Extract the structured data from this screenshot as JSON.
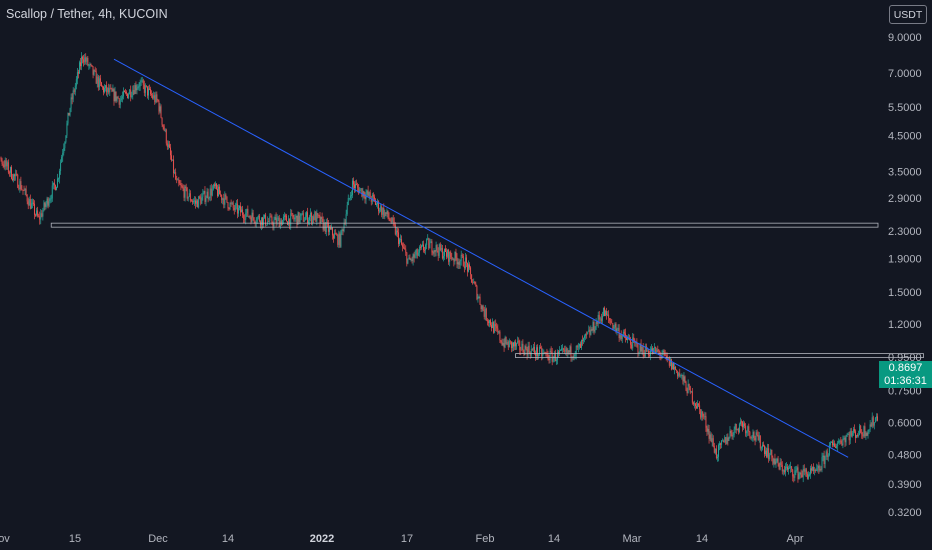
{
  "header": {
    "title": "Scallop / Tether, 4h, KUCOIN",
    "currency": "USDT"
  },
  "price_tag": {
    "price": "0.8697",
    "countdown": "01:36:31"
  },
  "colors": {
    "background": "#131722",
    "up": "#26a69a",
    "down": "#ef5350",
    "trendline": "#2962ff",
    "price_tag": "#089981"
  },
  "chart_data": {
    "type": "candlestick",
    "title": "Scallop / Tether, 4h, KUCOIN",
    "y_scale": "log",
    "y_ticks": [
      "0.3200",
      "0.3900",
      "0.4800",
      "0.6000",
      "0.7500",
      "0.9500",
      "1.2000",
      "1.5000",
      "1.9000",
      "2.3000",
      "2.9000",
      "3.5000",
      "4.5000",
      "5.5000",
      "7.0000",
      "9.0000"
    ],
    "x_ticks": [
      "ov",
      "15",
      "Dec",
      "14",
      "2022",
      "17",
      "Feb",
      "14",
      "Mar",
      "14",
      "Apr"
    ],
    "close_path": [
      [
        "2021-11-01",
        6.6
      ],
      [
        "2021-11-04",
        3.8
      ],
      [
        "2021-11-07",
        3.2
      ],
      [
        "2021-11-10",
        2.5
      ],
      [
        "2021-11-13",
        3.3
      ],
      [
        "2021-11-15",
        5.5
      ],
      [
        "2021-11-17",
        7.9
      ],
      [
        "2021-11-20",
        6.3
      ],
      [
        "2021-11-23",
        5.8
      ],
      [
        "2021-11-26",
        6.5
      ],
      [
        "2021-11-29",
        5.7
      ],
      [
        "2021-12-02",
        3.2
      ],
      [
        "2021-12-05",
        2.8
      ],
      [
        "2021-12-08",
        3.1
      ],
      [
        "2021-12-11",
        2.7
      ],
      [
        "2021-12-14",
        2.55
      ],
      [
        "2021-12-17",
        2.45
      ],
      [
        "2021-12-20",
        2.5
      ],
      [
        "2021-12-24",
        2.55
      ],
      [
        "2021-12-28",
        2.15
      ],
      [
        "2021-12-30",
        3.2
      ],
      [
        "2022-01-02",
        2.9
      ],
      [
        "2022-01-05",
        2.5
      ],
      [
        "2022-01-08",
        1.85
      ],
      [
        "2022-01-11",
        2.1
      ],
      [
        "2022-01-14",
        1.95
      ],
      [
        "2022-01-17",
        1.85
      ],
      [
        "2022-01-20",
        1.3
      ],
      [
        "2022-01-23",
        1.05
      ],
      [
        "2022-01-27",
        1.0
      ],
      [
        "2022-01-31",
        0.95
      ],
      [
        "2022-02-04",
        1.0
      ],
      [
        "2022-02-08",
        1.3
      ],
      [
        "2022-02-11",
        1.1
      ],
      [
        "2022-02-14",
        1.0
      ],
      [
        "2022-02-17",
        0.98
      ],
      [
        "2022-02-20",
        0.85
      ],
      [
        "2022-02-24",
        0.62
      ],
      [
        "2022-02-26",
        0.48
      ],
      [
        "2022-02-28",
        0.55
      ],
      [
        "2022-03-02",
        0.6
      ],
      [
        "2022-03-05",
        0.52
      ],
      [
        "2022-03-08",
        0.44
      ],
      [
        "2022-03-11",
        0.42
      ],
      [
        "2022-03-14",
        0.42
      ],
      [
        "2022-03-16",
        0.5
      ],
      [
        "2022-03-19",
        0.55
      ],
      [
        "2022-03-22",
        0.57
      ],
      [
        "2022-03-25",
        0.68
      ],
      [
        "2022-03-27",
        0.95
      ],
      [
        "2022-03-29",
        0.8697
      ]
    ],
    "horizontal_levels": [
      {
        "price": 2.4,
        "from": "2021-11-12",
        "to": "end"
      },
      {
        "price": 0.96,
        "from": "2022-01-25",
        "to": "2022-03-31"
      }
    ],
    "trendlines": [
      {
        "from": [
          "2021-11-22",
          7.7
        ],
        "to": [
          "2022-03-19",
          0.47
        ]
      }
    ],
    "last_price": 0.8697
  }
}
